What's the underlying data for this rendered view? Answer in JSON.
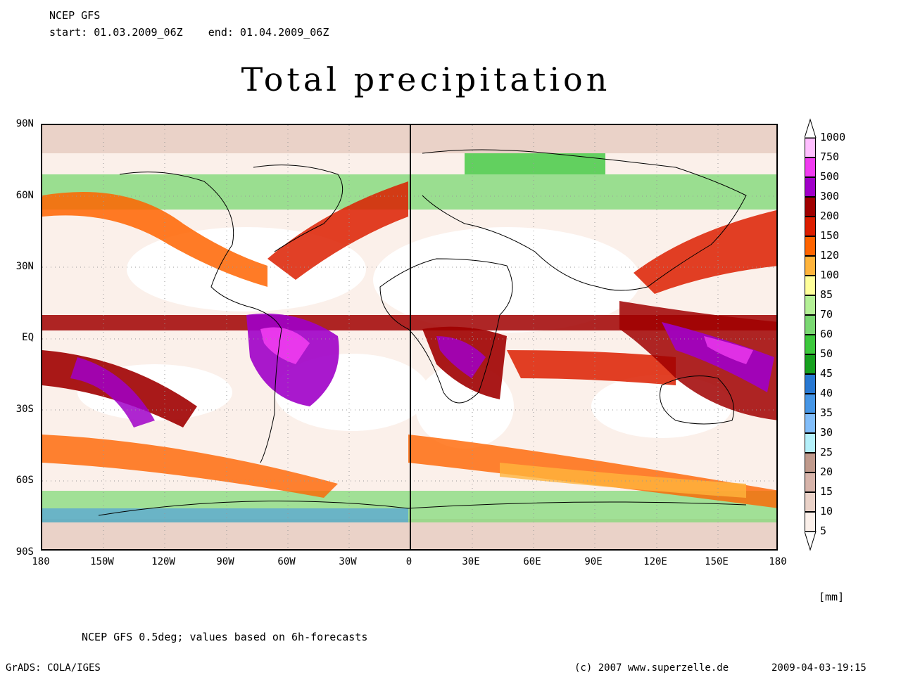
{
  "header": {
    "model": "NCEP GFS",
    "period": "start: 01.03.2009_06Z    end: 01.04.2009_06Z"
  },
  "title": "Total precipitation",
  "map": {
    "lat_labels": [
      "90N",
      "60N",
      "30N",
      "EQ",
      "30S",
      "60S",
      "90S"
    ],
    "lon_labels": [
      "180",
      "150W",
      "120W",
      "90W",
      "60W",
      "30W",
      "0",
      "30E",
      "60E",
      "90E",
      "120E",
      "150E",
      "180"
    ]
  },
  "legend": {
    "levels": [
      "1000",
      "750",
      "500",
      "300",
      "200",
      "150",
      "120",
      "100",
      "85",
      "70",
      "60",
      "50",
      "45",
      "40",
      "35",
      "30",
      "25",
      "20",
      "15",
      "10",
      "5"
    ],
    "colors": [
      "#ffbfff",
      "#f03cf0",
      "#a000c8",
      "#a00000",
      "#dc1e00",
      "#ff6400",
      "#ffb43c",
      "#ffff9a",
      "#b4f096",
      "#7ad872",
      "#3cc83c",
      "#16a01e",
      "#2878d2",
      "#4696e6",
      "#82befa",
      "#b4f0fa",
      "#c09a8c",
      "#d7b4aa",
      "#ead2c8",
      "#fbf0ea"
    ],
    "units": "[mm]"
  },
  "footer": {
    "note": "NCEP GFS 0.5deg; values based on 6h-forecasts",
    "software": "GrADS: COLA/IGES",
    "copyright": "(c) 2007 www.superzelle.de",
    "timestamp": "2009-04-03-19:15"
  }
}
